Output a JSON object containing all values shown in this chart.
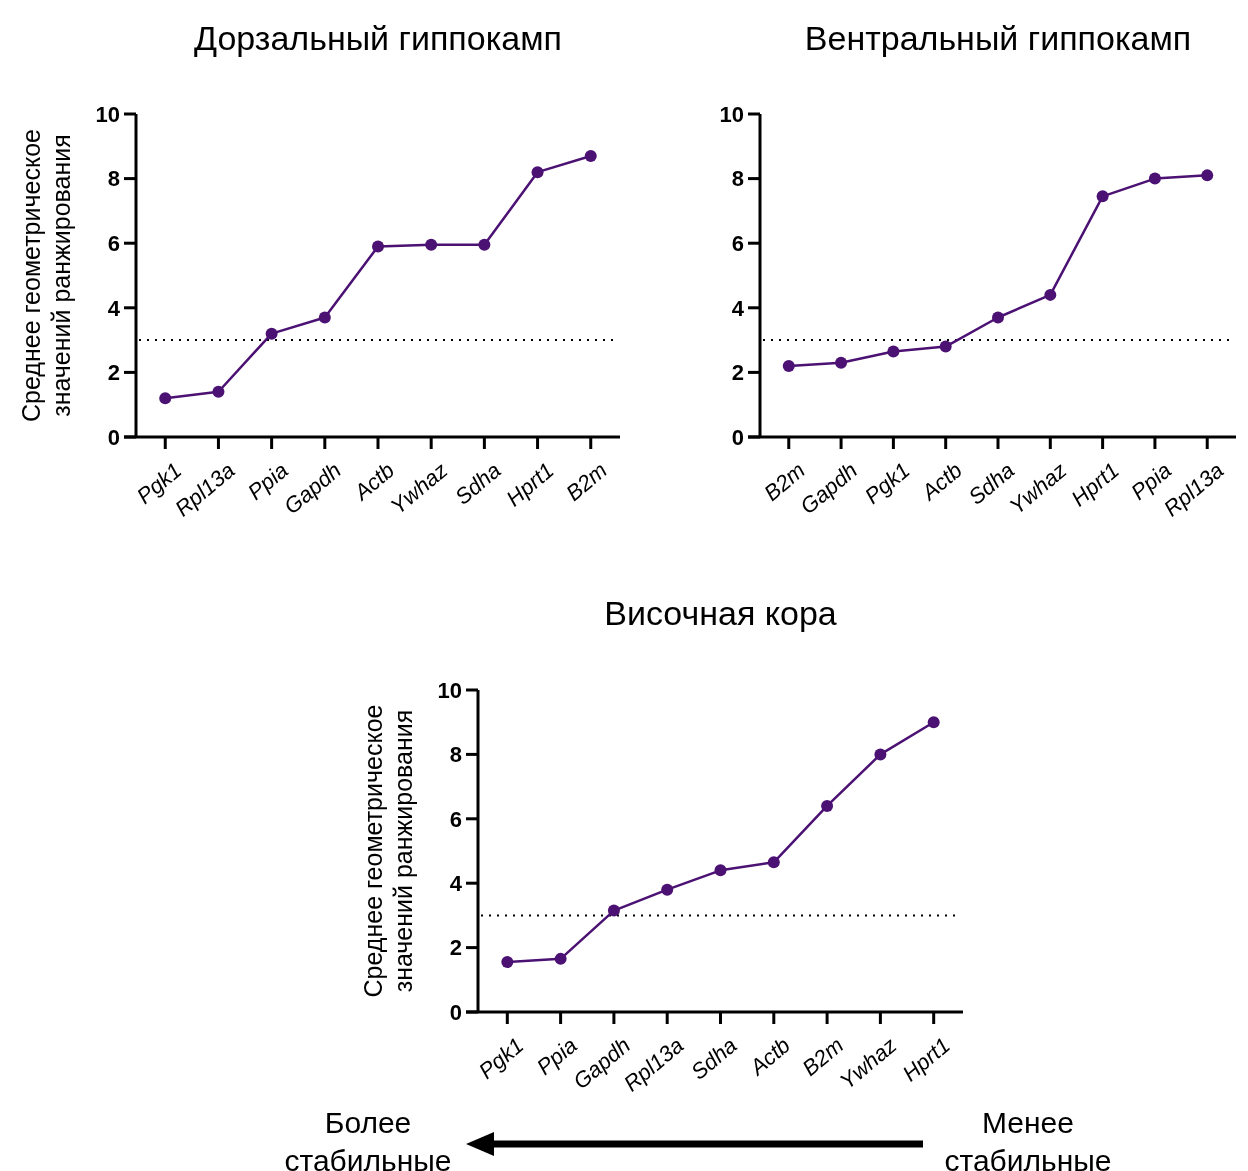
{
  "chart_data": [
    {
      "type": "line",
      "title": "Дорзальный гиппокамп",
      "ylabel": "Среднее геометрическое\nзначений ранжирования",
      "categories": [
        "Pgk1",
        "Rpl13a",
        "Ppia",
        "Gapdh",
        "Actb",
        "Ywhaz",
        "Sdha",
        "Hprt1",
        "B2m"
      ],
      "series": [
        {
          "color": "#4b1173",
          "values": [
            1.2,
            1.4,
            3.2,
            3.7,
            5.9,
            5.95,
            5.95,
            8.2,
            8.7
          ]
        }
      ],
      "ylim": [
        0,
        10
      ],
      "yticks": [
        0,
        2,
        4,
        6,
        8,
        10
      ],
      "marker": "circle",
      "line_style": "solid",
      "ref_lines": [
        {
          "axis": "y",
          "value": 3,
          "line_style": "dotted",
          "color": "#000000"
        }
      ]
    },
    {
      "type": "line",
      "title": "Вентральный гиппокамп",
      "categories": [
        "B2m",
        "Gapdh",
        "Pgk1",
        "Actb",
        "Sdha",
        "Ywhaz",
        "Hprt1",
        "Ppia",
        "Rpl13a"
      ],
      "series": [
        {
          "color": "#4b1173",
          "values": [
            2.2,
            2.3,
            2.65,
            2.8,
            3.7,
            4.4,
            7.45,
            8.0,
            8.1
          ]
        }
      ],
      "ylim": [
        0,
        10
      ],
      "yticks": [
        0,
        2,
        4,
        6,
        8,
        10
      ],
      "marker": "circle",
      "line_style": "solid",
      "ref_lines": [
        {
          "axis": "y",
          "value": 3,
          "line_style": "dotted",
          "color": "#000000"
        }
      ]
    },
    {
      "type": "line",
      "title": "Височная кора",
      "ylabel": "Среднее геометрическое\nзначений ранжирования",
      "categories": [
        "Pgk1",
        "Ppia",
        "Gapdh",
        "Rpl13a",
        "Sdha",
        "Actb",
        "B2m",
        "Ywhaz",
        "Hprt1"
      ],
      "series": [
        {
          "color": "#4b1173",
          "values": [
            1.55,
            1.65,
            3.15,
            3.8,
            4.4,
            4.65,
            6.4,
            8.0,
            9.0
          ]
        }
      ],
      "ylim": [
        0,
        10
      ],
      "yticks": [
        0,
        2,
        4,
        6,
        8,
        10
      ],
      "marker": "circle",
      "line_style": "solid",
      "ref_lines": [
        {
          "axis": "y",
          "value": 3,
          "line_style": "dotted",
          "color": "#000000"
        }
      ],
      "annotations": [
        "Более\nстабильные",
        "Менее\nстабильные"
      ]
    }
  ]
}
